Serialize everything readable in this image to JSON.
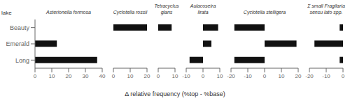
{
  "chart_data": [
    {
      "type": "bar",
      "orientation": "horizontal",
      "title": "Asterionella formosa",
      "ylabel": "lake",
      "categories": [
        "Beauty",
        "Emerald",
        "Long"
      ],
      "values": [
        0,
        13,
        37
      ],
      "color": "#111111",
      "xlim": [
        0,
        40
      ],
      "xticks": [
        0,
        10,
        20,
        30,
        40
      ],
      "grid": false
    },
    {
      "type": "bar",
      "orientation": "horizontal",
      "title": "Cyclotella rossii",
      "categories": [
        "Beauty",
        "Emerald",
        "Long"
      ],
      "values": [
        20,
        0,
        0
      ],
      "color": "#111111",
      "xlim": [
        0,
        20
      ],
      "xticks": [
        0,
        10,
        20
      ],
      "grid": false,
      "tick_labels": "x"
    },
    {
      "type": "bar",
      "orientation": "horizontal",
      "title": "Tetracyclus\nglans",
      "categories": [
        "Beauty",
        "Emerald",
        "Long"
      ],
      "values": [
        8,
        0,
        0
      ],
      "color": "#111111",
      "xlim": [
        0,
        10
      ],
      "xticks": [
        0,
        10
      ],
      "grid": false,
      "tick_labels": "x"
    },
    {
      "type": "bar",
      "orientation": "horizontal",
      "title": "Aulacoseira\nlirata",
      "categories": [
        "Beauty",
        "Emerald",
        "Long"
      ],
      "values": [
        9,
        5,
        -8
      ],
      "color": "#111111",
      "xlim": [
        -10,
        10
      ],
      "xticks": [
        -10,
        0,
        10
      ],
      "grid": false,
      "tick_labels": "x"
    },
    {
      "type": "bar",
      "orientation": "horizontal",
      "title": "Cyclotella stelligera",
      "categories": [
        "Beauty",
        "Emerald",
        "Long"
      ],
      "values": [
        -18,
        19,
        -18
      ],
      "color": "#111111",
      "xlim": [
        -20,
        20
      ],
      "xticks": [
        -20,
        -10,
        0,
        10,
        20
      ],
      "grid": false,
      "tick_labels": "x"
    },
    {
      "type": "bar",
      "orientation": "horizontal",
      "title": "Σ small Fragilaria\nsensu lato spp.",
      "categories": [
        "Beauty",
        "Emerald",
        "Long"
      ],
      "values": [
        -2,
        -17,
        -2
      ],
      "color": "#111111",
      "xlim": [
        -20,
        0
      ],
      "xticks": [
        -20,
        -10,
        0
      ],
      "grid": false,
      "tick_labels": "x"
    }
  ],
  "xlabel": "Δ relative frequency (%top - %base)"
}
